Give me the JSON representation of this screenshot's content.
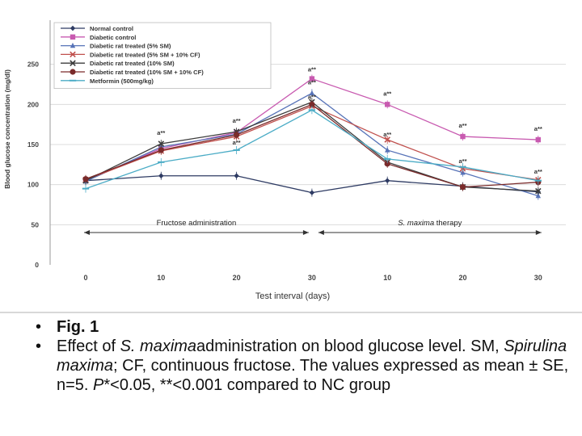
{
  "chart_data": {
    "type": "line",
    "ylabel": "Blood glucose concentration (mg/dl)",
    "xlabel": "Test interval (days)",
    "categories": [
      "0",
      "10",
      "20",
      "30",
      "10",
      "20",
      "30"
    ],
    "yticks": [
      0,
      50,
      100,
      150,
      200,
      250
    ],
    "ylim": [
      0,
      300
    ],
    "grid": true,
    "legend_position": "top-left",
    "series": [
      {
        "name": "Normal control",
        "color": "#2e3b63",
        "marker": "diamond",
        "values": [
          105,
          111,
          111,
          90,
          105,
          98,
          91
        ]
      },
      {
        "name": "Diabetic control",
        "color": "#c85ab0",
        "marker": "square",
        "values": [
          105,
          145,
          165,
          232,
          200,
          160,
          156
        ]
      },
      {
        "name": "Diabetic rat treated (5% SM)",
        "color": "#5773b8",
        "marker": "triangle",
        "values": [
          104,
          147,
          163,
          214,
          143,
          115,
          86
        ]
      },
      {
        "name": "Diabetic rat treated (5% SM + 10% CF)",
        "color": "#c0504d",
        "marker": "x",
        "values": [
          106,
          142,
          160,
          198,
          156,
          120,
          106
        ]
      },
      {
        "name": "Diabetic rat treated (10% SM)",
        "color": "#3c3c3c",
        "marker": "x",
        "values": [
          105,
          151,
          166,
          203,
          128,
          97,
          92
        ]
      },
      {
        "name": "Diabetic rat treated (10% SM + 10% CF)",
        "color": "#7a2b2b",
        "marker": "circle",
        "values": [
          107,
          143,
          162,
          200,
          126,
          97,
          103
        ]
      },
      {
        "name": "Metformin (500mg/kg)",
        "color": "#4bacc6",
        "marker": "dash",
        "values": [
          95,
          128,
          143,
          193,
          132,
          122,
          105
        ]
      }
    ],
    "annotations": [
      {
        "text": "a**",
        "category_index": 1,
        "value": 162
      },
      {
        "text": "a**",
        "category_index": 2,
        "value": 177
      },
      {
        "text": "a**",
        "category_index": 2,
        "value": 150
      },
      {
        "text": "a**",
        "category_index": 3,
        "value": 241
      },
      {
        "text": "a**",
        "category_index": 3,
        "value": 225
      },
      {
        "text": "a**",
        "category_index": 3,
        "value": 207
      },
      {
        "text": "a**",
        "category_index": 4,
        "value": 211
      },
      {
        "text": "a**",
        "category_index": 4,
        "value": 160
      },
      {
        "text": "a**",
        "category_index": 5,
        "value": 171
      },
      {
        "text": "a**",
        "category_index": 5,
        "value": 127
      },
      {
        "text": "a**",
        "category_index": 6,
        "value": 167
      },
      {
        "text": "a**",
        "category_index": 6,
        "value": 114
      }
    ],
    "phases": [
      {
        "label": "Fructose administration",
        "from_index": 0,
        "to_index": 3
      },
      {
        "label_italic": "S. maxima",
        "label_rest": " therapy",
        "from_index": 3,
        "to_index": 6
      }
    ]
  },
  "caption": {
    "fig_label": "Fig. 1",
    "line1_pre": "Effect of ",
    "line1_italic": "S. maxima",
    "line1_post": "administration on blood glucose level. SM, ",
    "line1_italic2": "Spirulina maxima",
    "line1_post2": "; CF, continuous fructose. The values expressed as mean ± SE, n=5. ",
    "line1_italic3": "P",
    "line1_post3": "*<0.05, **<0.001 compared to NC group"
  }
}
